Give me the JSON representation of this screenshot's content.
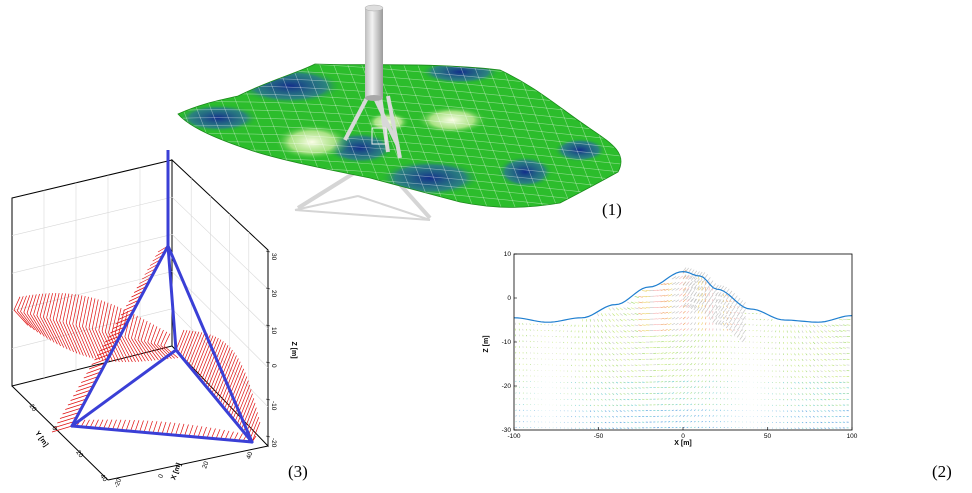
{
  "figure1": {
    "label": "(1)",
    "colors": {
      "dark": "#1b3f9e",
      "mid": "#22b922",
      "light": "#f4f9cc",
      "structure": "#cfcfcf"
    }
  },
  "figure2": {
    "label": "(2)",
    "chart_data": {
      "type": "scatter",
      "title": "",
      "xlabel": "X [m]",
      "ylabel": "Z [m]",
      "xlim": [
        -100,
        100
      ],
      "ylim": [
        -30,
        10
      ],
      "x_ticks": [
        "-100",
        "-50",
        "0",
        "50",
        "100"
      ],
      "y_ticks": [
        "10",
        "0",
        "-10",
        "-20",
        "-30"
      ],
      "free_surface": {
        "x": [
          -100,
          -80,
          -60,
          -40,
          -20,
          0,
          10,
          20,
          40,
          60,
          80,
          100
        ],
        "z": [
          -4.5,
          -5.5,
          -4.5,
          -1.5,
          2.5,
          6,
          5,
          2,
          -2.5,
          -5,
          -5.5,
          -4
        ]
      }
    }
  },
  "figure3": {
    "label": "(3)",
    "z_axis_label": "Z [m]",
    "x_axis_label": "X [m]",
    "y_axis_label": "Y [m]",
    "z_ticks": [
      "-20",
      "-10",
      "0",
      "10",
      "20",
      "30"
    ],
    "x_ticks": [
      "-20",
      "0",
      "20",
      "40"
    ],
    "y_ticks": [
      "-20",
      "0",
      "20",
      "40"
    ],
    "colors": {
      "structure": "#3a3fd6",
      "force": "#e01010"
    }
  }
}
